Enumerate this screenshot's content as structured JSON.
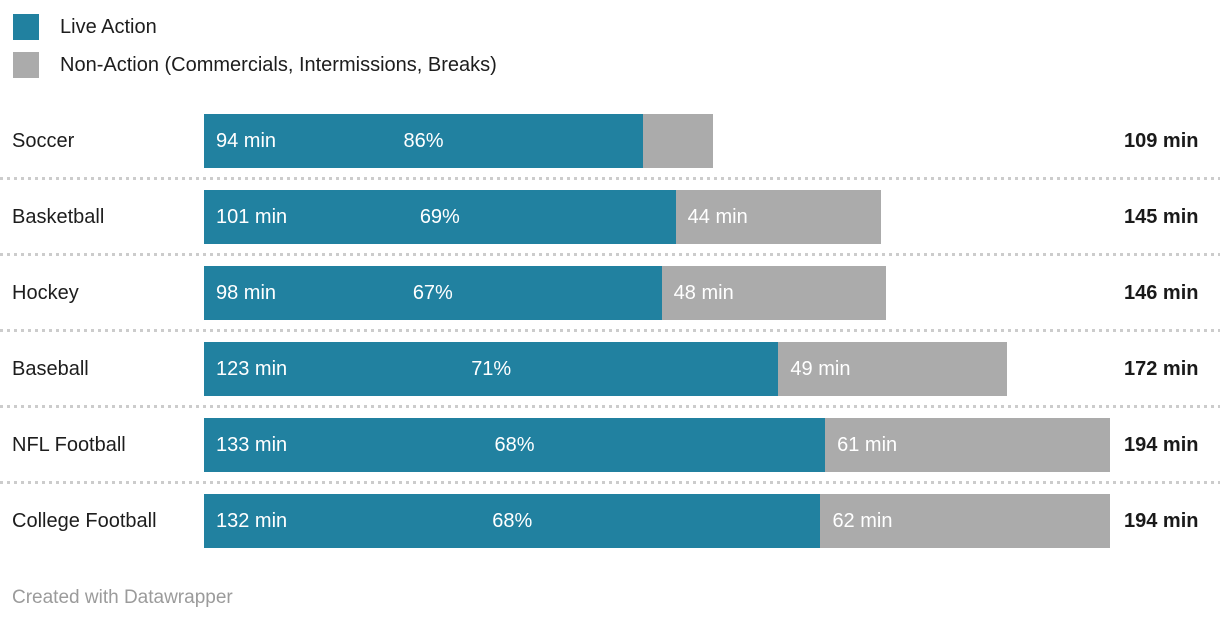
{
  "legend": {
    "items": [
      {
        "label": "Live Action",
        "color": "#2181a0"
      },
      {
        "label": "Non-Action (Commercials, Intermissions, Breaks)",
        "color": "#ababab"
      }
    ]
  },
  "chart_data": {
    "type": "bar",
    "orientation": "horizontal",
    "stacked": true,
    "unit": "min",
    "max_minutes": 194,
    "grid": false,
    "legend_position": "top-left",
    "categories": [
      "Soccer",
      "Basketball",
      "Hockey",
      "Baseball",
      "NFL Football",
      "College Football"
    ],
    "series": [
      {
        "name": "Live Action",
        "color": "#2181a0",
        "values": [
          94,
          101,
          98,
          123,
          133,
          132
        ]
      },
      {
        "name": "Non-Action (Commercials, Intermissions, Breaks)",
        "color": "#ababab",
        "values": [
          15,
          44,
          48,
          49,
          61,
          62
        ]
      }
    ],
    "totals": [
      109,
      145,
      146,
      172,
      194,
      194
    ],
    "live_minute_labels": [
      "94 min",
      "101 min",
      "98 min",
      "123 min",
      "133 min",
      "132 min"
    ],
    "live_percent_labels": [
      "86%",
      "69%",
      "67%",
      "71%",
      "68%",
      "68%"
    ],
    "non_action_minute_labels": [
      "",
      "44 min",
      "48 min",
      "49 min",
      "61 min",
      "62 min"
    ],
    "total_labels": [
      "109 min",
      "145 min",
      "146 min",
      "172 min",
      "194 min",
      "194 min"
    ]
  },
  "colors": {
    "live_action": "#2181a0",
    "non_action": "#ababab",
    "bar_text": "#ffffff",
    "label_text": "#1d1d1d",
    "total_text": "#1a1a1a",
    "separator": "#cccccc",
    "footer_text": "#9b9b9b"
  },
  "footer": {
    "credit": "Created with Datawrapper"
  }
}
